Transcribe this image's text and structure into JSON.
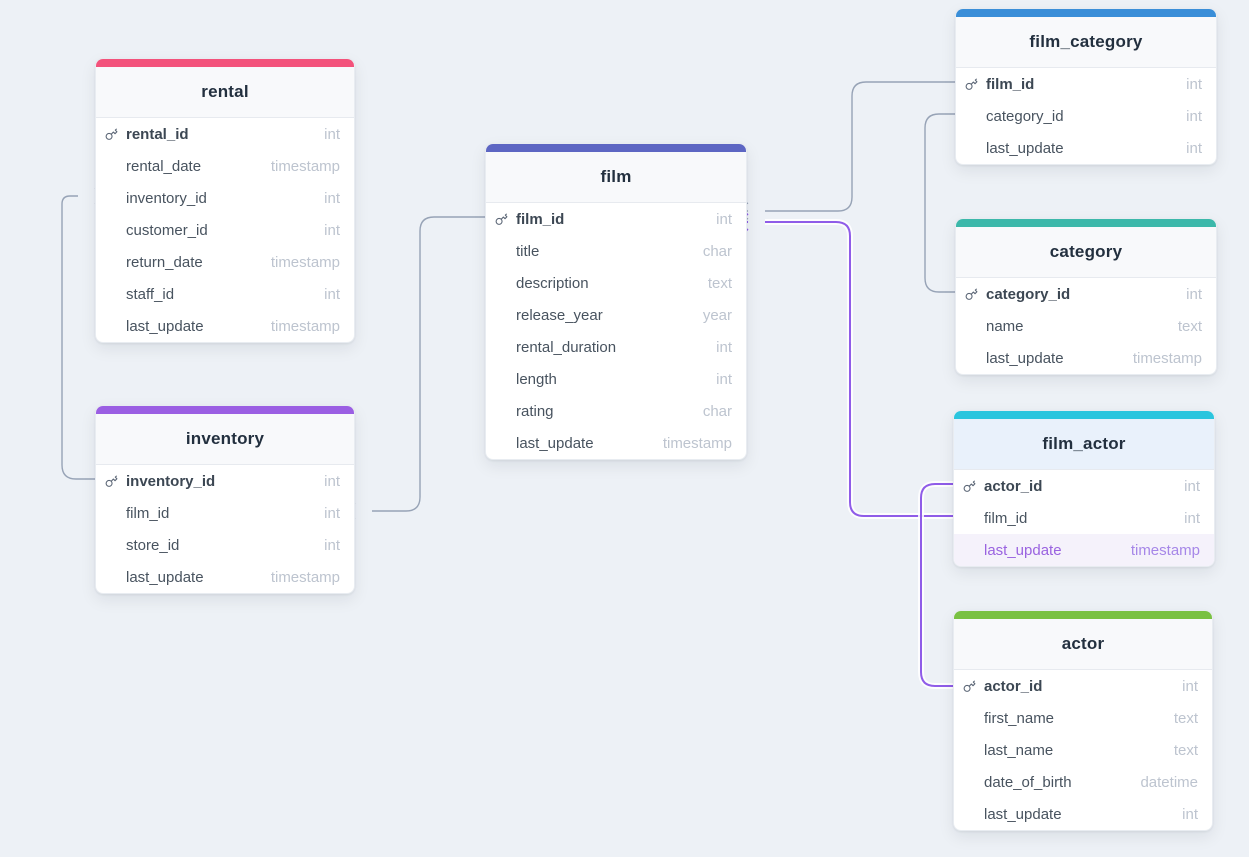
{
  "canvas": {
    "background_color": "#edf1f6"
  },
  "diagram": {
    "colors": {
      "connector": "#97a3b6",
      "connector_highlight": "#8f5ce8",
      "card_background": "#ffffff",
      "header_background": "#f8f9fb",
      "selected_header_background": "#e9f1fb",
      "highlight_row_background": "#f5f2fb",
      "highlight_text": "#9a63e0"
    },
    "tables": [
      {
        "name": "rental",
        "accent_color": "#f3527b",
        "fields": [
          {
            "name": "rental_id",
            "type": "int",
            "pk": true
          },
          {
            "name": "rental_date",
            "type": "timestamp"
          },
          {
            "name": "inventory_id",
            "type": "int"
          },
          {
            "name": "customer_id",
            "type": "int"
          },
          {
            "name": "return_date",
            "type": "timestamp"
          },
          {
            "name": "staff_id",
            "type": "int"
          },
          {
            "name": "last_update",
            "type": "timestamp"
          }
        ]
      },
      {
        "name": "inventory",
        "accent_color": "#9b5fe3",
        "fields": [
          {
            "name": "inventory_id",
            "type": "int",
            "pk": true
          },
          {
            "name": "film_id",
            "type": "int"
          },
          {
            "name": "store_id",
            "type": "int"
          },
          {
            "name": "last_update",
            "type": "timestamp"
          }
        ]
      },
      {
        "name": "film",
        "accent_color": "#5d66c3",
        "fields": [
          {
            "name": "film_id",
            "type": "int",
            "pk": true
          },
          {
            "name": "title",
            "type": "char"
          },
          {
            "name": "description",
            "type": "text"
          },
          {
            "name": "release_year",
            "type": "year"
          },
          {
            "name": "rental_duration",
            "type": "int"
          },
          {
            "name": "length",
            "type": "int"
          },
          {
            "name": "rating",
            "type": "char"
          },
          {
            "name": "last_update",
            "type": "timestamp"
          }
        ]
      },
      {
        "name": "film_category",
        "accent_color": "#3a8ed8",
        "fields": [
          {
            "name": "film_id",
            "type": "int",
            "pk": true
          },
          {
            "name": "category_id",
            "type": "int"
          },
          {
            "name": "last_update",
            "type": "int"
          }
        ]
      },
      {
        "name": "category",
        "accent_color": "#3cb8aa",
        "fields": [
          {
            "name": "category_id",
            "type": "int",
            "pk": true
          },
          {
            "name": "name",
            "type": "text"
          },
          {
            "name": "last_update",
            "type": "timestamp"
          }
        ]
      },
      {
        "name": "film_actor",
        "accent_color": "#2bc5de",
        "selected": true,
        "fields": [
          {
            "name": "actor_id",
            "type": "int",
            "pk": true
          },
          {
            "name": "film_id",
            "type": "int"
          },
          {
            "name": "last_update",
            "type": "timestamp",
            "highlighted": true
          }
        ]
      },
      {
        "name": "actor",
        "accent_color": "#79c142",
        "fields": [
          {
            "name": "actor_id",
            "type": "int",
            "pk": true
          },
          {
            "name": "first_name",
            "type": "text"
          },
          {
            "name": "last_name",
            "type": "text"
          },
          {
            "name": "date_of_birth",
            "type": "datetime"
          },
          {
            "name": "last_update",
            "type": "int"
          }
        ]
      }
    ],
    "relationships": [
      {
        "source": "rental.inventory_id",
        "target": "inventory.inventory_id",
        "highlighted": false
      },
      {
        "source": "inventory.film_id",
        "target": "film.film_id",
        "highlighted": false
      },
      {
        "source": "film.film_id",
        "target": "film_category.film_id",
        "highlighted": false
      },
      {
        "source": "film_category.category_id",
        "target": "category.category_id",
        "highlighted": false
      },
      {
        "source": "film.film_id",
        "target": "film_actor.film_id",
        "highlighted": true
      },
      {
        "source": "film_actor.actor_id",
        "target": "actor.actor_id",
        "highlighted": true
      }
    ]
  }
}
